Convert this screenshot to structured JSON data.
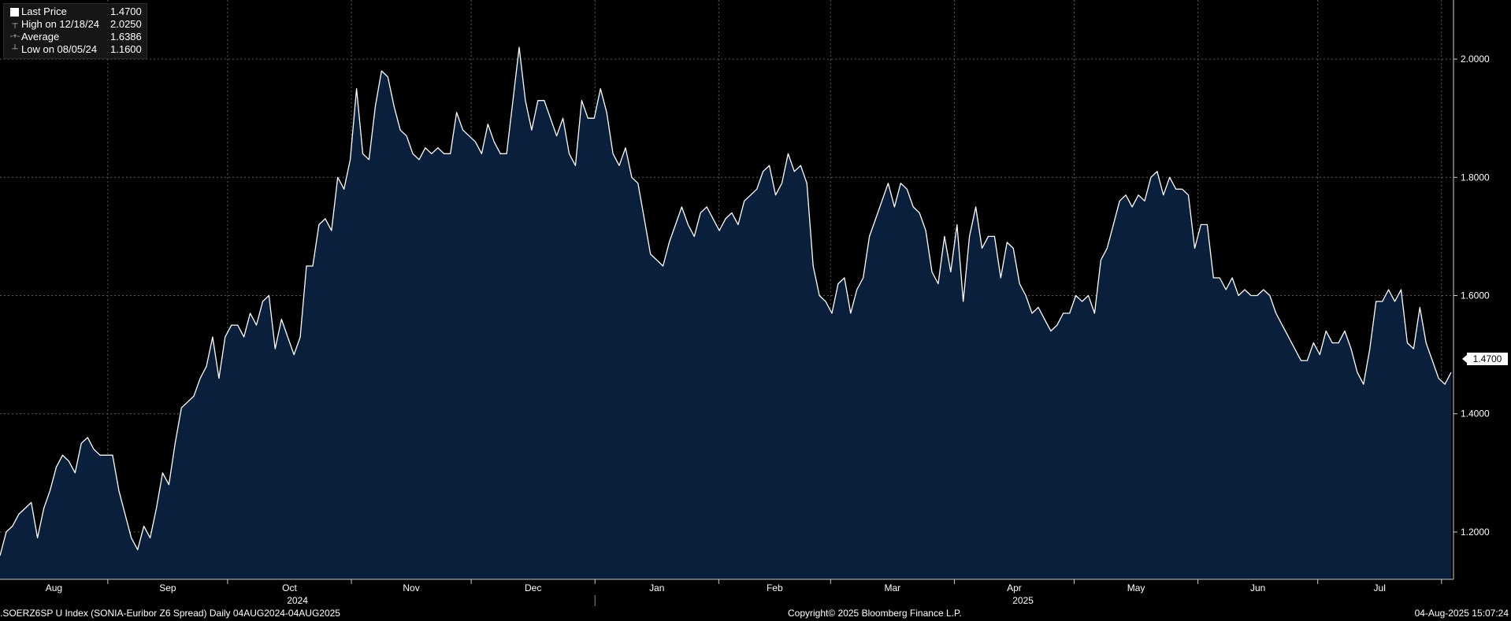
{
  "legend": {
    "last_price": {
      "label": "Last Price",
      "value": "1.4700"
    },
    "high": {
      "label": "High on 12/18/24",
      "value": "2.0250"
    },
    "average": {
      "label": "Average",
      "value": "1.6386"
    },
    "low": {
      "label": "Low on 08/05/24",
      "value": "1.1600"
    }
  },
  "footer": {
    "left": ".SOERZ6SP U Index (SONIA-Euribor Z6 Spread)  Daily 04AUG2024-04AUG2025",
    "center": "Copyright© 2025 Bloomberg Finance L.P.",
    "right": "04-Aug-2025 15:07:24"
  },
  "last_price_tag": "1.4700",
  "colors": {
    "background": "#000000",
    "area_fill": "#0a1f3c",
    "line": "#ffffff",
    "grid": "#5a5a5a"
  },
  "chart_data": {
    "type": "area",
    "x_start": "2024-08-05",
    "x_end": "2025-08-04",
    "ylim": [
      1.12,
      2.1
    ],
    "y_ticks": [
      "1.2000",
      "1.4000",
      "1.6000",
      "1.8000",
      "2.0000"
    ],
    "x_month_labels": [
      "Aug",
      "Sep",
      "Oct",
      "Nov",
      "Dec",
      "Jan",
      "Feb",
      "Mar",
      "Apr",
      "May",
      "Jun",
      "Jul"
    ],
    "x_year_labels": [
      "2024",
      "2025"
    ],
    "grid": true,
    "series": [
      {
        "values": [
          1.16,
          1.2,
          1.21,
          1.23,
          1.24,
          1.25,
          1.19,
          1.24,
          1.27,
          1.31,
          1.33,
          1.32,
          1.3,
          1.35,
          1.36,
          1.34,
          1.33,
          1.33,
          1.33,
          1.27,
          1.23,
          1.19,
          1.17,
          1.21,
          1.19,
          1.24,
          1.3,
          1.28,
          1.35,
          1.41,
          1.42,
          1.43,
          1.46,
          1.48,
          1.53,
          1.46,
          1.53,
          1.55,
          1.55,
          1.53,
          1.57,
          1.55,
          1.59,
          1.6,
          1.51,
          1.56,
          1.53,
          1.5,
          1.53,
          1.65,
          1.65,
          1.72,
          1.73,
          1.71,
          1.8,
          1.78,
          1.83,
          1.95,
          1.84,
          1.83,
          1.92,
          1.98,
          1.97,
          1.92,
          1.88,
          1.87,
          1.84,
          1.83,
          1.85,
          1.84,
          1.85,
          1.84,
          1.84,
          1.91,
          1.88,
          1.87,
          1.86,
          1.84,
          1.89,
          1.86,
          1.84,
          1.84,
          1.93,
          2.02,
          1.93,
          1.88,
          1.93,
          1.93,
          1.9,
          1.87,
          1.9,
          1.84,
          1.82,
          1.93,
          1.9,
          1.9,
          1.95,
          1.91,
          1.84,
          1.82,
          1.85,
          1.8,
          1.79,
          1.73,
          1.67,
          1.66,
          1.65,
          1.69,
          1.72,
          1.75,
          1.72,
          1.7,
          1.74,
          1.75,
          1.73,
          1.71,
          1.73,
          1.74,
          1.72,
          1.76,
          1.77,
          1.78,
          1.81,
          1.82,
          1.77,
          1.79,
          1.84,
          1.81,
          1.82,
          1.79,
          1.65,
          1.6,
          1.59,
          1.57,
          1.62,
          1.63,
          1.57,
          1.61,
          1.63,
          1.7,
          1.73,
          1.76,
          1.79,
          1.75,
          1.79,
          1.78,
          1.75,
          1.74,
          1.71,
          1.64,
          1.62,
          1.7,
          1.64,
          1.72,
          1.59,
          1.7,
          1.75,
          1.68,
          1.7,
          1.7,
          1.63,
          1.69,
          1.68,
          1.62,
          1.6,
          1.57,
          1.58,
          1.56,
          1.54,
          1.55,
          1.57,
          1.57,
          1.6,
          1.59,
          1.6,
          1.57,
          1.66,
          1.68,
          1.72,
          1.76,
          1.77,
          1.75,
          1.77,
          1.76,
          1.8,
          1.81,
          1.77,
          1.8,
          1.78,
          1.78,
          1.77,
          1.68,
          1.72,
          1.72,
          1.63,
          1.63,
          1.61,
          1.63,
          1.6,
          1.61,
          1.6,
          1.6,
          1.61,
          1.6,
          1.57,
          1.55,
          1.53,
          1.51,
          1.49,
          1.49,
          1.52,
          1.5,
          1.54,
          1.52,
          1.52,
          1.54,
          1.51,
          1.47,
          1.45,
          1.51,
          1.59,
          1.59,
          1.61,
          1.59,
          1.61,
          1.52,
          1.51,
          1.58,
          1.52,
          1.49,
          1.46,
          1.45,
          1.47
        ]
      }
    ]
  }
}
